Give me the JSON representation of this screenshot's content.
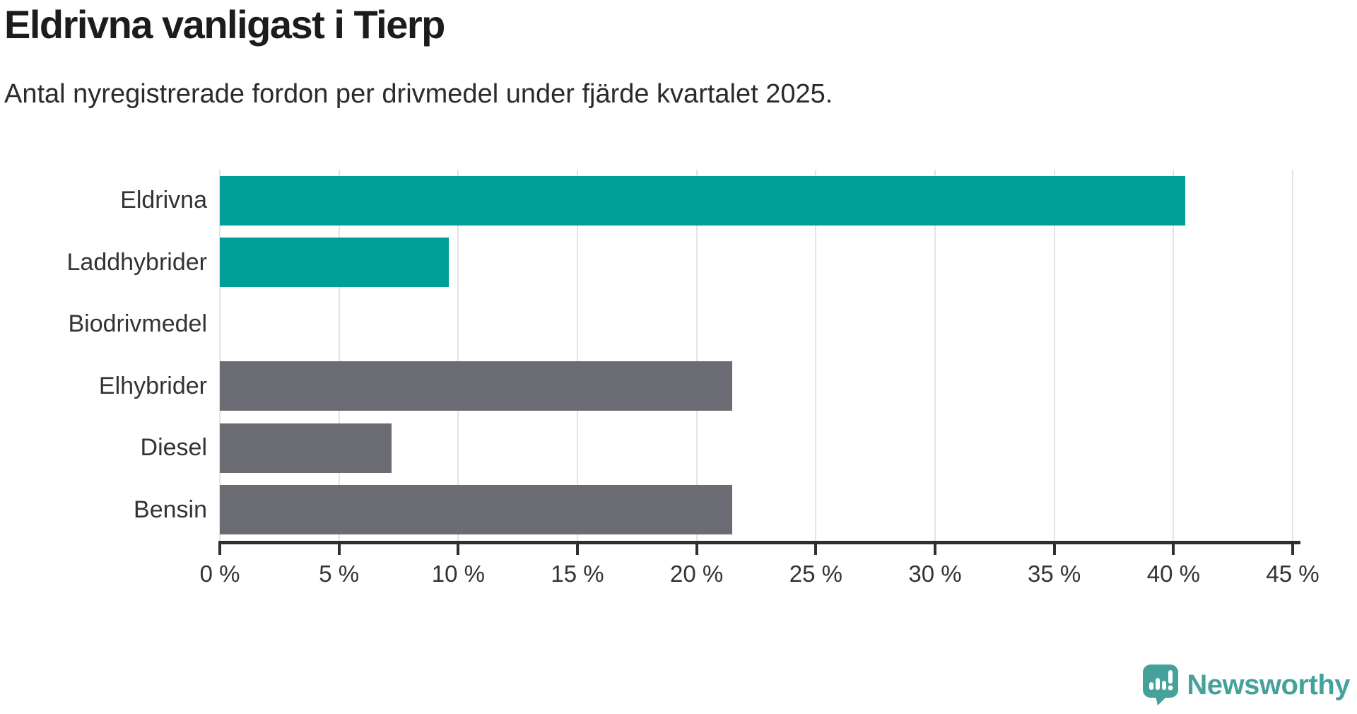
{
  "header": {
    "title": "Eldrivna vanligast i Tierp",
    "subtitle": "Antal nyregistrerade fordon per drivmedel under fjärde kvartalet 2025."
  },
  "chart_data": {
    "type": "bar",
    "orientation": "horizontal",
    "title": "Eldrivna vanligast i Tierp",
    "subtitle": "Antal nyregistrerade fordon per drivmedel under fjärde kvartalet 2025.",
    "categories": [
      "Eldrivna",
      "Laddhybrider",
      "Biodrivmedel",
      "Elhybrider",
      "Diesel",
      "Bensin"
    ],
    "values": [
      40.5,
      9.6,
      0,
      21.5,
      7.2,
      21.5
    ],
    "unit": "%",
    "bar_colors": [
      "#009E96",
      "#009E96",
      "#009E96",
      "#6B6B73",
      "#6B6B73",
      "#6B6B73"
    ],
    "accent_teal": "#009E96",
    "accent_gray": "#6B6B73",
    "xlim": [
      0,
      45
    ],
    "xticks": [
      0,
      5,
      10,
      15,
      20,
      25,
      30,
      35,
      40,
      45
    ],
    "xtick_labels": [
      "0 %",
      "5 %",
      "10 %",
      "15 %",
      "20 %",
      "25 %",
      "30 %",
      "35 %",
      "40 %",
      "45 %"
    ],
    "grid": true,
    "gridline_color": "#E4E4E4",
    "axis_color": "#2F2F2F",
    "label_color": "#333333",
    "legend": "none"
  },
  "footer": {
    "brand": "Newsworthy",
    "logo_color": "#45A29B"
  }
}
